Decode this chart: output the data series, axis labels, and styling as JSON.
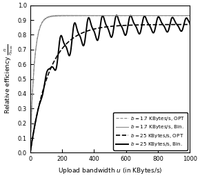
{
  "title": "",
  "xlabel": "Upload bandwidth $u$ (in KBytes/s)",
  "ylabel": "Relative efficiency $\\frac{\\eta}{\\eta_{\\mathrm{max}}}$",
  "xlim": [
    0,
    1000
  ],
  "ylim": [
    0,
    1
  ],
  "yticks": [
    0,
    0.1,
    0.2,
    0.3,
    0.4,
    0.5,
    0.6,
    0.7,
    0.8,
    0.9,
    1
  ],
  "xticks": [
    0,
    200,
    400,
    600,
    800,
    1000
  ],
  "legend": [
    {
      "label": "$b = 1.7$ KBytes/s, OPT",
      "color": "#888888",
      "lw": 0.8,
      "ls": "dashed"
    },
    {
      "label": "$b = 1.7$ KBytes/s, Bin.",
      "color": "#888888",
      "lw": 0.8,
      "ls": "solid"
    },
    {
      "label": "$b = 25$ KBytes/s, OPT",
      "color": "black",
      "lw": 1.2,
      "ls": "dashed"
    },
    {
      "label": "$b = 25$ KBytes/s, Bin.",
      "color": "black",
      "lw": 1.4,
      "ls": "solid"
    }
  ],
  "b_small": 1.7,
  "b_large": 25.0
}
